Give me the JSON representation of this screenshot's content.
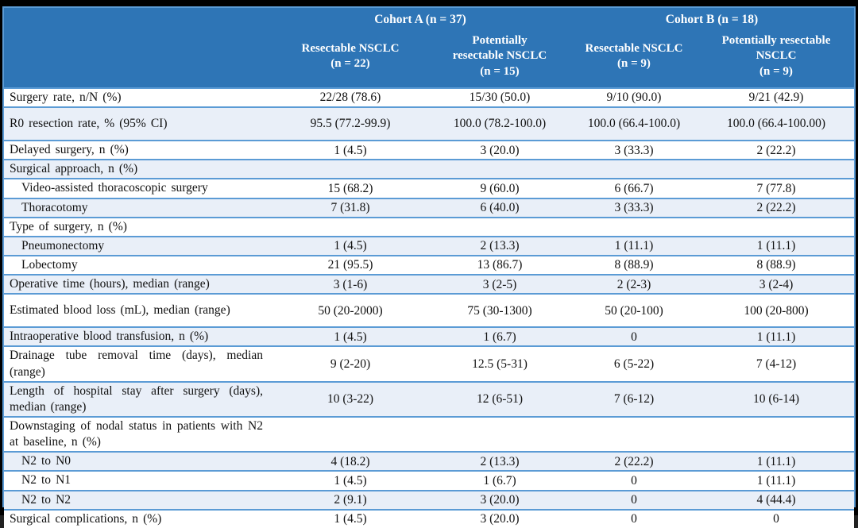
{
  "colors": {
    "header_bg": "#2E75B6",
    "band_bg": "#E9EFF8",
    "grid_line": "#5B9BD5",
    "frame_bg": "#000000",
    "header_text": "#FFFFFF",
    "body_text": "#111111"
  },
  "table": {
    "header": {
      "groups": [
        {
          "label": "Cohort A (n = 37)"
        },
        {
          "label": "Cohort B (n = 18)"
        }
      ],
      "columns": [
        "Resectable NSCLC\n(n = 22)",
        "Potentially\nresectable NSCLC\n(n = 15)",
        "Resectable NSCLC\n(n = 9)",
        "Potentially resectable\nNSCLC\n(n = 9)"
      ]
    },
    "rows": [
      {
        "label": "Surgery rate, n/N (%)",
        "indent": false,
        "values": [
          "22/28 (78.6)",
          "15/30 (50.0)",
          "9/10 (90.0)",
          "9/21 (42.9)"
        ]
      },
      {
        "label": "R0 resection rate, % (95% CI)",
        "indent": false,
        "values": [
          "95.5 (77.2-99.9)",
          "100.0 (78.2-100.0)",
          "100.0 (66.4-100.0)",
          "100.0 (66.4-100.00)"
        ]
      },
      {
        "label": "Delayed surgery, n (%)",
        "indent": false,
        "values": [
          "1 (4.5)",
          "3 (20.0)",
          "3 (33.3)",
          "2 (22.2)"
        ]
      },
      {
        "label": "Surgical approach, n (%)",
        "indent": false,
        "values": [
          "",
          "",
          "",
          ""
        ]
      },
      {
        "label": "Video-assisted thoracoscopic surgery",
        "indent": true,
        "values": [
          "15 (68.2)",
          "9 (60.0)",
          "6 (66.7)",
          "7 (77.8)"
        ]
      },
      {
        "label": "Thoracotomy",
        "indent": true,
        "values": [
          "7 (31.8)",
          "6 (40.0)",
          "3 (33.3)",
          "2 (22.2)"
        ]
      },
      {
        "label": "Type of surgery, n (%)",
        "indent": false,
        "values": [
          "",
          "",
          "",
          ""
        ]
      },
      {
        "label": "Pneumonectomy",
        "indent": true,
        "values": [
          "1 (4.5)",
          "2 (13.3)",
          "1 (11.1)",
          "1 (11.1)"
        ]
      },
      {
        "label": "Lobectomy",
        "indent": true,
        "values": [
          "21 (95.5)",
          "13 (86.7)",
          "8 (88.9)",
          "8 (88.9)"
        ]
      },
      {
        "label": "Operative time (hours), median (range)",
        "indent": false,
        "values": [
          "3 (1-6)",
          "3 (2-5)",
          "2 (2-3)",
          "3 (2-4)"
        ]
      },
      {
        "label": "Estimated blood loss (mL), median (range)",
        "indent": false,
        "values": [
          "50 (20-2000)",
          "75 (30-1300)",
          "50 (20-100)",
          "100 (20-800)"
        ]
      },
      {
        "label": "Intraoperative blood transfusion, n (%)",
        "indent": false,
        "values": [
          "1 (4.5)",
          "1 (6.7)",
          "0",
          "1 (11.1)"
        ]
      },
      {
        "label": "Drainage tube removal time (days), median (range)",
        "indent": false,
        "values": [
          "9 (2-20)",
          "12.5 (5-31)",
          "6 (5-22)",
          "7 (4-12)"
        ]
      },
      {
        "label": "Length of hospital stay after surgery (days), median (range)",
        "indent": false,
        "values": [
          "10 (3-22)",
          "12 (6-51)",
          "7 (6-12)",
          "10 (6-14)"
        ]
      },
      {
        "label": "Downstaging of nodal status in patients with N2 at baseline, n (%)",
        "indent": false,
        "values": [
          "",
          "",
          "",
          ""
        ]
      },
      {
        "label": "N2 to N0",
        "indent": true,
        "values": [
          "4 (18.2)",
          "2 (13.3)",
          "2 (22.2)",
          "1 (11.1)"
        ]
      },
      {
        "label": "N2 to N1",
        "indent": true,
        "values": [
          "1 (4.5)",
          "1 (6.7)",
          "0",
          "1 (11.1)"
        ]
      },
      {
        "label": "N2 to N2",
        "indent": true,
        "values": [
          "2 (9.1)",
          "3 (20.0)",
          "0",
          "4 (44.4)"
        ]
      },
      {
        "label": "Surgical complications, n (%)",
        "indent": false,
        "values": [
          "1 (4.5)",
          "3 (20.0)",
          "0",
          "0"
        ]
      }
    ]
  }
}
